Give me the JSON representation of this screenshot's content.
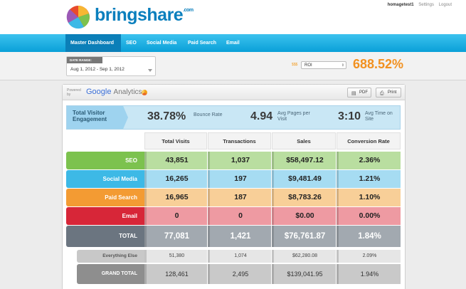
{
  "brand": {
    "name": "bringshare",
    "tld": ".com"
  },
  "user_nav": {
    "username": "homagetest1",
    "settings": "Settings",
    "logout": "Logout"
  },
  "nav": {
    "tabs": [
      "Master Dashboard",
      "SEO",
      "Social Media",
      "Paid Search",
      "Email"
    ],
    "active": "Master Dashboard"
  },
  "toolbar": {
    "date_range_label": "DATE RANGE:",
    "date_range_value": "Aug 1, 2012 - Sep 1, 2012",
    "metric_icon": "$$$",
    "metric_selected": "ROI",
    "metric_value": "688.52%"
  },
  "panel": {
    "powered_by": "Powered by",
    "ga_google": "Google",
    "ga_analytics": "Analytics",
    "pdf_label": "PDF",
    "print_label": "Print"
  },
  "engagement": {
    "title": "Total Visitor Engagement",
    "bounce_value": "38.78%",
    "bounce_label": "Bounce Rate",
    "pages_value": "4.94",
    "pages_label": "Avg Pages per Visit",
    "time_value": "3:10",
    "time_label": "Avg Time on Site"
  },
  "table": {
    "headers": [
      "Total Visits",
      "Transactions",
      "Sales",
      "Conversion Rate"
    ],
    "rows": [
      {
        "label": "SEO",
        "values": [
          "43,851",
          "1,037",
          "$58,497.12",
          "2.36%"
        ]
      },
      {
        "label": "Social Media",
        "values": [
          "16,265",
          "197",
          "$9,481.49",
          "1.21%"
        ]
      },
      {
        "label": "Paid Search",
        "values": [
          "16,965",
          "187",
          "$8,783.26",
          "1.10%"
        ]
      },
      {
        "label": "Email",
        "values": [
          "0",
          "0",
          "$0.00",
          "0.00%"
        ]
      },
      {
        "label": "TOTAL",
        "values": [
          "77,081",
          "1,421",
          "$76,761.87",
          "1.84%"
        ]
      },
      {
        "label": "Everything Else",
        "values": [
          "51,380",
          "1,074",
          "$62,280.08",
          "2.09%"
        ]
      },
      {
        "label": "GRAND TOTAL",
        "values": [
          "128,461",
          "2,495",
          "$139,041.95",
          "1.94%"
        ]
      }
    ]
  },
  "colors": {
    "accent": "#0aa0d8",
    "roi": "#f29120",
    "seo": "#7cc24e",
    "social": "#3db9e6",
    "paid": "#f39b33",
    "email": "#d72638"
  }
}
